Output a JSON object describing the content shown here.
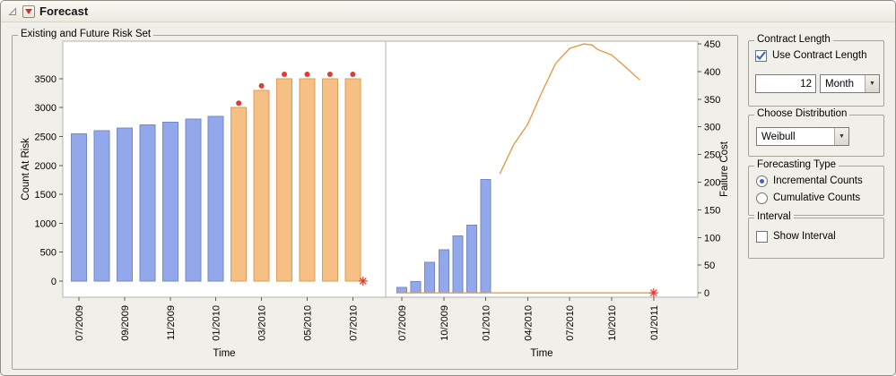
{
  "header": {
    "title": "Forecast"
  },
  "icons": {
    "disclosure": "open-triangle",
    "red_triangle_menu": "red-down-triangle",
    "dropdown_arrow": "▼"
  },
  "risk_set_group": {
    "title": "Existing and Future Risk Set"
  },
  "controls": {
    "contract_length": {
      "title": "Contract Length",
      "use_contract_label": "Use Contract Length",
      "use_contract_checked": true,
      "length_value": "12",
      "unit_value": "Month"
    },
    "distribution": {
      "title": "Choose Distribution",
      "selected": "Weibull"
    },
    "forecasting_type": {
      "title": "Forecasting Type",
      "options": [
        {
          "label": "Incremental Counts",
          "selected": true
        },
        {
          "label": "Cumulative Counts",
          "selected": false
        }
      ]
    },
    "interval": {
      "title": "Interval",
      "checkbox_label": "Show Interval",
      "checked": false
    }
  },
  "chart_data": [
    {
      "name": "count-at-risk",
      "type": "bar",
      "xlabel": "Time",
      "ylabel": "Count At Risk",
      "y_axis_side": "left",
      "ylim": [
        -280,
        4150
      ],
      "y_ticks": [
        0,
        500,
        1000,
        1500,
        2000,
        2500,
        3000,
        3500
      ],
      "xlim_months": [
        -0.71,
        13.44
      ],
      "x_ticks": {
        "months": [
          0,
          2,
          4,
          6,
          8,
          10,
          12
        ],
        "labels": [
          "07/2009",
          "09/2009",
          "11/2009",
          "01/2010",
          "03/2010",
          "05/2010",
          "07/2010"
        ]
      },
      "series": [
        {
          "name": "existing-risk-set",
          "role": "observed",
          "color": "#92A8EB",
          "stroke": "#7287CE",
          "months": [
            0,
            1,
            2,
            3,
            4,
            5,
            6
          ],
          "labels": [
            "07/2009",
            "08/2009",
            "09/2009",
            "10/2009",
            "11/2009",
            "12/2009",
            "01/2010"
          ],
          "values": [
            2550,
            2600,
            2650,
            2700,
            2750,
            2800,
            2850
          ]
        },
        {
          "name": "future-risk-set",
          "role": "forecast",
          "color": "#F6C084",
          "stroke": "#D99E55",
          "dot_color": "#E03B32",
          "months": [
            7,
            8,
            9,
            10,
            11,
            12
          ],
          "labels": [
            "02/2010",
            "03/2010",
            "04/2010",
            "05/2010",
            "06/2010",
            "07/2010"
          ],
          "values": [
            3000,
            3300,
            3500,
            3500,
            3500,
            3500
          ]
        }
      ],
      "marker": {
        "month": 12.45,
        "value": 0,
        "shape": "red-asterisk",
        "color": "#E03B32"
      }
    },
    {
      "name": "failure-cost",
      "type": "bar+line",
      "xlabel": "Time",
      "ylabel": "Failure Cost",
      "y_axis_side": "right",
      "ylim": [
        -8,
        455
      ],
      "y_ticks": [
        0,
        50,
        100,
        150,
        200,
        250,
        300,
        350,
        400,
        450
      ],
      "xlim_months": [
        -1.15,
        21.15
      ],
      "x_ticks": {
        "months": [
          0,
          3,
          6,
          9,
          12,
          15,
          18
        ],
        "labels": [
          "07/2009",
          "10/2009",
          "01/2010",
          "04/2010",
          "07/2010",
          "10/2010",
          "01/2011"
        ]
      },
      "series": [
        {
          "name": "observed-failure-cost",
          "role": "observed",
          "color": "#92A8EB",
          "stroke": "#7287CE",
          "months": [
            0,
            1,
            2,
            3,
            4,
            5,
            6
          ],
          "labels": [
            "07/2009",
            "08/2009",
            "09/2009",
            "10/2009",
            "11/2009",
            "12/2009",
            "01/2010"
          ],
          "values": [
            10,
            20,
            55,
            78,
            103,
            122,
            205
          ]
        }
      ],
      "lines": [
        {
          "name": "forecast-cost-curve",
          "color": "#E8943A",
          "points": [
            [
              7,
              215
            ],
            [
              8,
              268
            ],
            [
              9,
              305
            ],
            [
              10,
              362
            ],
            [
              11,
              415
            ],
            [
              12,
              442
            ],
            [
              13,
              450
            ],
            [
              13.6,
              448
            ],
            [
              14,
              440
            ],
            [
              15,
              430
            ],
            [
              16,
              408
            ],
            [
              17,
              385
            ]
          ]
        },
        {
          "name": "zero-cost-baseline",
          "color": "#E8943A",
          "points": [
            [
              -0.4,
              0
            ],
            [
              18,
              0
            ]
          ]
        }
      ],
      "marker": {
        "month": 18,
        "value": 0,
        "shape": "red-asterisk",
        "color": "#E03B32"
      }
    }
  ]
}
